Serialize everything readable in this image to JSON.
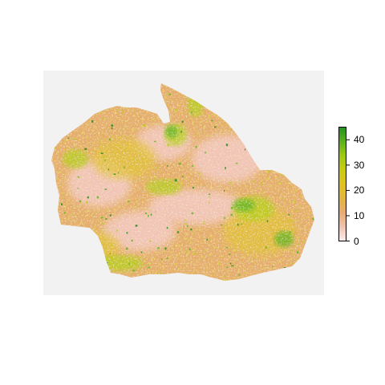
{
  "map": {
    "background_color": "#f2f2f2",
    "palette": {
      "low": "#f4cccc",
      "low_mid": "#e5ad6b",
      "mid": "#e0c234",
      "high_mid": "#b5cf1a",
      "high": "#5fb320",
      "max": "#1e8a1e"
    }
  },
  "legend": {
    "ticks": [
      "0",
      "10",
      "20",
      "30",
      "40"
    ],
    "min": 0,
    "max": 45,
    "gradient_colors": [
      "#fbeeee",
      "#f0c3b0",
      "#e8aa70",
      "#e2b63d",
      "#e0c21e",
      "#c8cc10",
      "#9fc912",
      "#5bb21a",
      "#229120"
    ]
  }
}
